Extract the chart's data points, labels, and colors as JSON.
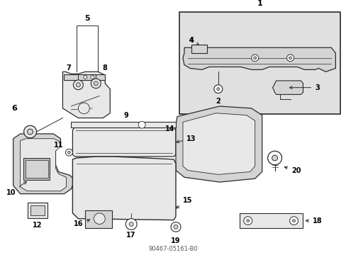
{
  "background_color": "#ffffff",
  "line_color": "#2a2a2a",
  "fill_light": "#e8e8e8",
  "fill_mid": "#d4d4d4",
  "fill_dark": "#b8b8b8",
  "inset_bg": "#e0e0e0",
  "text_color": "#000000",
  "label_fontsize": 8,
  "small_fontsize": 7
}
